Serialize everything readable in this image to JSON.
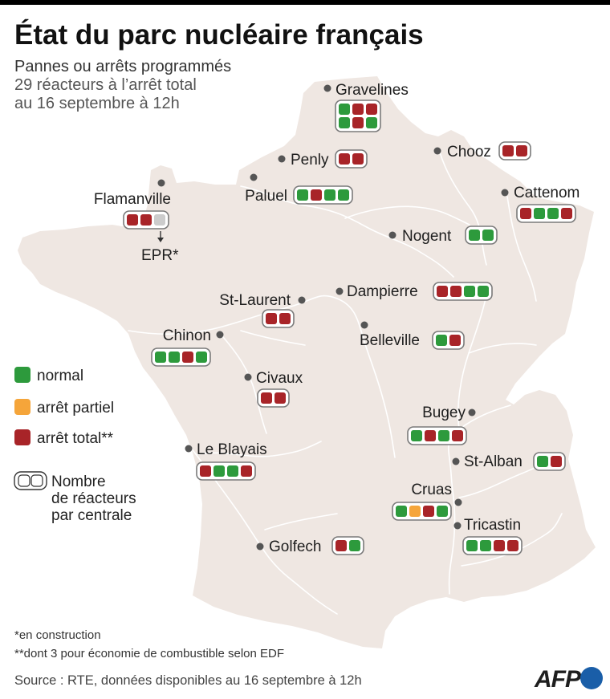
{
  "header": {
    "title": "État du parc nucléaire français",
    "subtitle": "Pannes ou arrêts programmés",
    "line2": "29 réacteurs à l’arrêt total",
    "line3": "au 16 septembre à 12h"
  },
  "colors": {
    "normal": "#2d9a3c",
    "partial": "#f5a53a",
    "total": "#a82428",
    "construction": "#cccccc",
    "map": "#efe7e2",
    "river": "#ffffff",
    "logo": "#1a5ea8"
  },
  "legend": {
    "normal": "normal",
    "partial": "arrêt partiel",
    "total": "arrêt total**",
    "count_lines": [
      "Nombre",
      "de réacteurs",
      "par centrale"
    ]
  },
  "plants": [
    {
      "name": "Gravelines",
      "reactors": [
        "normal",
        "total",
        "total",
        "normal",
        "total",
        "normal"
      ]
    },
    {
      "name": "Penly",
      "reactors": [
        "total",
        "total"
      ]
    },
    {
      "name": "Chooz",
      "reactors": [
        "total",
        "total"
      ]
    },
    {
      "name": "Paluel",
      "reactors": [
        "normal",
        "total",
        "normal",
        "normal"
      ]
    },
    {
      "name": "Flamanville",
      "reactors": [
        "total",
        "total",
        "construction"
      ]
    },
    {
      "name": "Cattenom",
      "reactors": [
        "total",
        "normal",
        "normal",
        "total"
      ]
    },
    {
      "name": "Nogent",
      "reactors": [
        "normal",
        "normal"
      ]
    },
    {
      "name": "Dampierre",
      "reactors": [
        "total",
        "total",
        "normal",
        "normal"
      ]
    },
    {
      "name": "St-Laurent",
      "reactors": [
        "total",
        "total"
      ]
    },
    {
      "name": "Belleville",
      "reactors": [
        "normal",
        "total"
      ]
    },
    {
      "name": "Chinon",
      "reactors": [
        "normal",
        "normal",
        "total",
        "normal"
      ]
    },
    {
      "name": "Civaux",
      "reactors": [
        "total",
        "total"
      ]
    },
    {
      "name": "Bugey",
      "reactors": [
        "normal",
        "total",
        "normal",
        "total"
      ]
    },
    {
      "name": "St-Alban",
      "reactors": [
        "normal",
        "total"
      ]
    },
    {
      "name": "Le Blayais",
      "reactors": [
        "total",
        "normal",
        "normal",
        "total"
      ]
    },
    {
      "name": "Cruas",
      "reactors": [
        "normal",
        "partial",
        "total",
        "normal"
      ]
    },
    {
      "name": "Tricastin",
      "reactors": [
        "normal",
        "normal",
        "total",
        "total"
      ]
    },
    {
      "name": "Golfech",
      "reactors": [
        "total",
        "normal"
      ]
    }
  ],
  "epr_label": "EPR*",
  "footnotes": [
    "*en construction",
    "**dont 3 pour économie de combustible selon EDF"
  ],
  "source": "Source : RTE, données disponibles au 16 septembre à 12h",
  "logo_text": "AFP"
}
